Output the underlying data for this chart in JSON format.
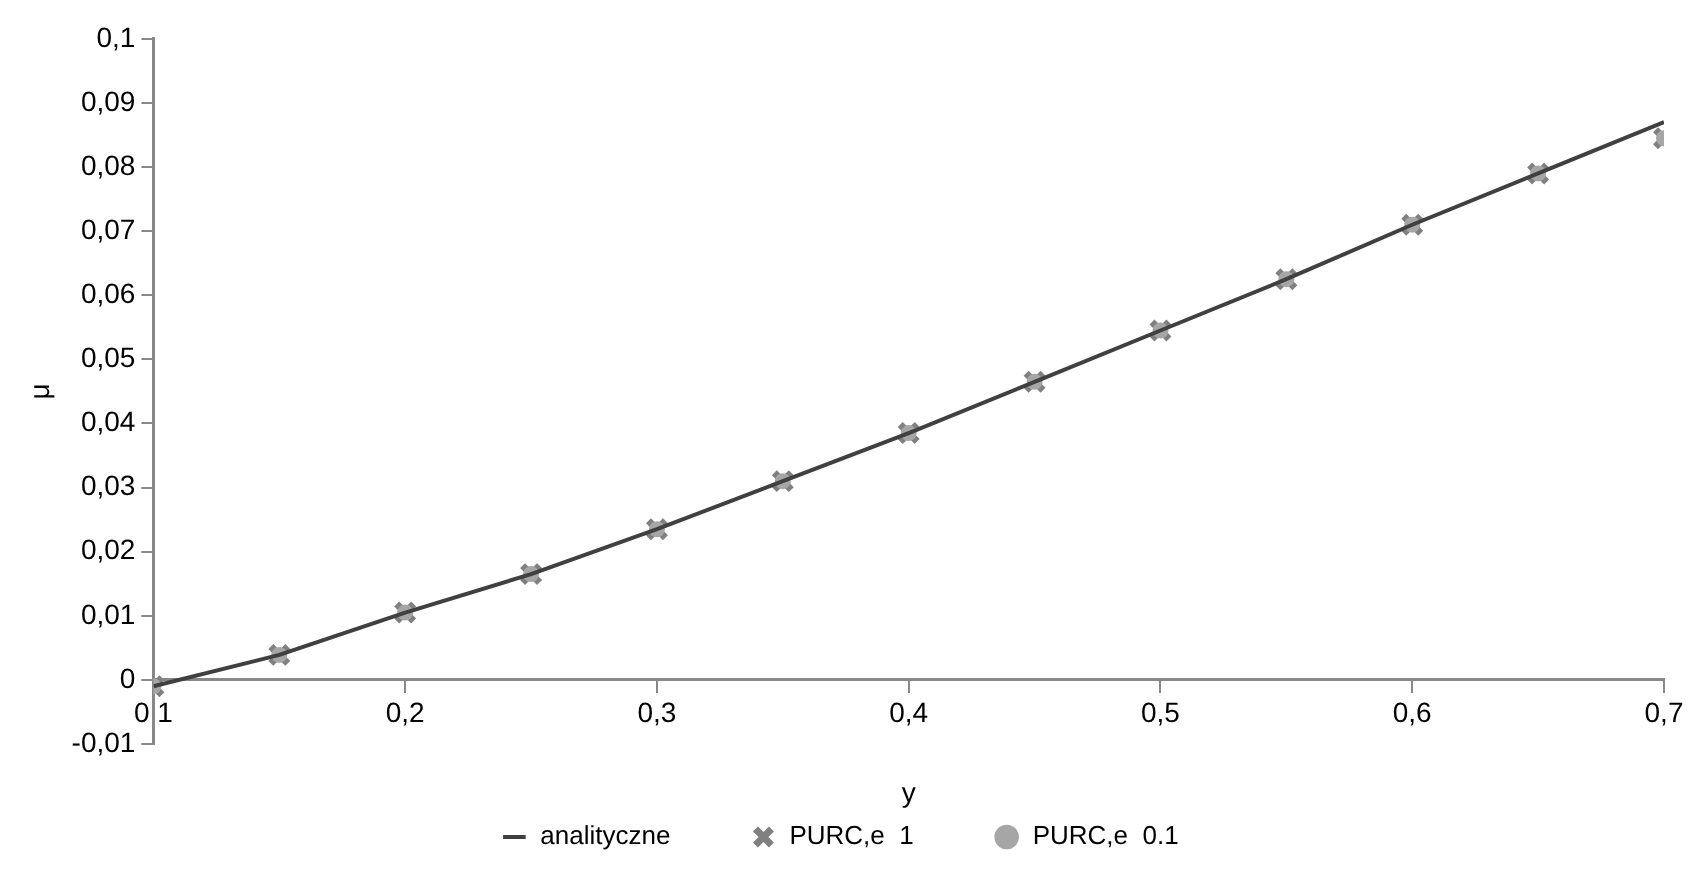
{
  "chart_data": {
    "type": "line",
    "xlabel": "y",
    "ylabel": "μ",
    "x": [
      0.1,
      0.15,
      0.2,
      0.25,
      0.3,
      0.35,
      0.4,
      0.45,
      0.5,
      0.55,
      0.6,
      0.65,
      0.7
    ],
    "series": [
      {
        "name": "analityczne",
        "type": "line",
        "color": "#404040",
        "marker": "none",
        "line_style": "solid",
        "values": [
          -0.001,
          0.0039,
          0.0105,
          0.0165,
          0.0235,
          0.031,
          0.0385,
          0.0465,
          0.0545,
          0.0625,
          0.071,
          0.079,
          0.087
        ]
      },
      {
        "name": "PURC,e  1",
        "type": "scatter",
        "color": "#808080",
        "marker": "cross",
        "values": [
          -0.001,
          0.0039,
          0.0105,
          0.0165,
          0.0235,
          0.031,
          0.0385,
          0.0465,
          0.0545,
          0.0625,
          0.071,
          0.079,
          0.0845
        ]
      },
      {
        "name": "PURC,e  0.1",
        "type": "scatter",
        "color": "#a6a6a6",
        "marker": "circle",
        "values": [
          -0.001,
          0.0039,
          0.0105,
          0.0165,
          0.0235,
          0.031,
          0.0385,
          0.0465,
          0.0545,
          0.0625,
          0.071,
          0.079,
          0.0845
        ]
      }
    ],
    "xlim": [
      0.1,
      0.7
    ],
    "xticks": [
      {
        "value": 0.1,
        "label": "0,1"
      },
      {
        "value": 0.2,
        "label": "0,2"
      },
      {
        "value": 0.3,
        "label": "0,3"
      },
      {
        "value": 0.4,
        "label": "0,4"
      },
      {
        "value": 0.5,
        "label": "0,5"
      },
      {
        "value": 0.6,
        "label": "0,6"
      },
      {
        "value": 0.7,
        "label": "0,7"
      }
    ],
    "ylim": [
      -0.01,
      0.1
    ],
    "yticks": [
      {
        "value": -0.01,
        "label": "-0,01"
      },
      0,
      {
        "value": 0.01,
        "label": "0,01"
      },
      {
        "value": 0.02,
        "label": "0,02"
      },
      {
        "value": 0.03,
        "label": "0,03"
      },
      {
        "value": 0.04,
        "label": "0,04"
      },
      {
        "value": 0.05,
        "label": "0,05"
      },
      {
        "value": 0.06,
        "label": "0,06"
      },
      {
        "value": 0.07,
        "label": "0,07"
      },
      {
        "value": 0.08,
        "label": "0,08"
      },
      {
        "value": 0.09,
        "label": "0,09"
      },
      {
        "value": 0.1,
        "label": "0,1"
      }
    ],
    "grid": false,
    "legend": "bottom"
  }
}
